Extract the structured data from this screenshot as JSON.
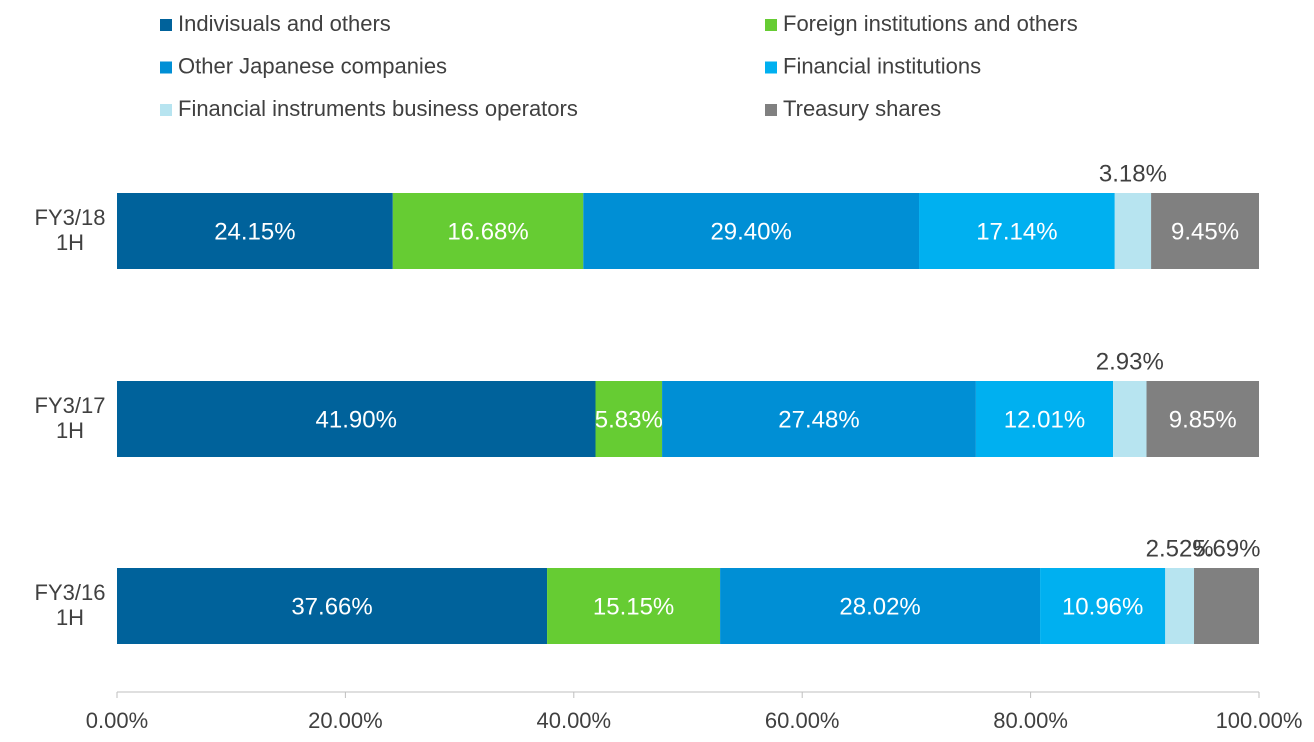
{
  "chart_data": {
    "type": "stacked-bar-horizontal",
    "categories": [
      "FY3/18 1H",
      "FY3/17 1H",
      "FY3/16 1H"
    ],
    "series": [
      {
        "name": "Indivisuals and others",
        "color": "#00629b",
        "label_color": "#ffffff",
        "values": [
          24.15,
          41.9,
          37.66
        ],
        "value_labels": [
          "24.15%",
          "41.90%",
          "37.66%"
        ],
        "label_position": [
          "inside",
          "inside",
          "inside"
        ]
      },
      {
        "name": "Foreign institutions and others",
        "color": "#66cc33",
        "label_color": "#ffffff",
        "values": [
          16.68,
          5.83,
          15.15
        ],
        "value_labels": [
          "16.68%",
          "5.83%",
          "15.15%"
        ],
        "label_position": [
          "inside",
          "inside",
          "inside"
        ]
      },
      {
        "name": "Other Japanese companies",
        "color": "#008fd5",
        "label_color": "#ffffff",
        "values": [
          29.4,
          27.48,
          28.02
        ],
        "value_labels": [
          "29.40%",
          "27.48%",
          "28.02%"
        ],
        "label_position": [
          "inside",
          "inside",
          "inside"
        ]
      },
      {
        "name": "Financial institutions",
        "color": "#00b0f0",
        "label_color": "#ffffff",
        "values": [
          17.14,
          12.01,
          10.96
        ],
        "value_labels": [
          "17.14%",
          "12.01%",
          "10.96%"
        ],
        "label_position": [
          "inside",
          "inside",
          "inside"
        ]
      },
      {
        "name": "Financial instruments business operators",
        "color": "#b7e4f0",
        "label_color": "#404040",
        "values": [
          3.18,
          2.93,
          2.52
        ],
        "value_labels": [
          "3.18%",
          "2.93%",
          "2.52%"
        ],
        "label_position": [
          "above",
          "above",
          "above"
        ]
      },
      {
        "name": "Treasury shares",
        "color": "#808080",
        "label_color": "#ffffff",
        "values": [
          9.45,
          9.85,
          5.69
        ],
        "value_labels": [
          "9.45%",
          "9.85%",
          "5.69%"
        ],
        "label_position": [
          "inside",
          "inside",
          "above"
        ]
      }
    ],
    "xlim": [
      0,
      100
    ],
    "xticks": [
      {
        "value": 0,
        "label": "0.00%"
      },
      {
        "value": 20,
        "label": "20.00%"
      },
      {
        "value": 40,
        "label": "40.00%"
      },
      {
        "value": 60,
        "label": "60.00%"
      },
      {
        "value": 80,
        "label": "80.00%"
      },
      {
        "value": 100,
        "label": "100.00%"
      }
    ],
    "legend": "top"
  }
}
